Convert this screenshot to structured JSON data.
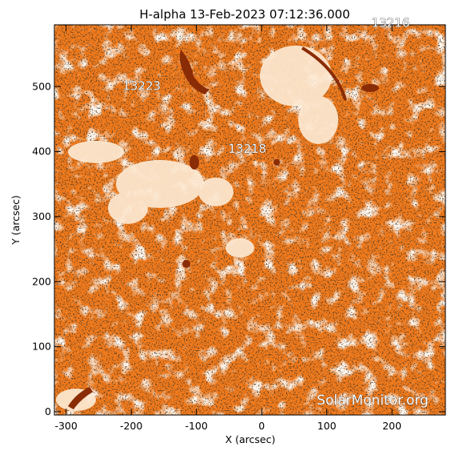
{
  "title": "H-alpha 13-Feb-2023 07:12:36.000",
  "axes": {
    "xlabel": "X (arcsec)",
    "ylabel": "Y (arcsec)",
    "xlim": [
      -318,
      282
    ],
    "ylim": [
      -5,
      595
    ],
    "xticks": [
      -300,
      -200,
      -100,
      0,
      100,
      200
    ],
    "yticks": [
      0,
      100,
      200,
      300,
      400,
      500
    ]
  },
  "regions": [
    {
      "id": "13216",
      "label": "13216",
      "x": 198,
      "y": 592
    },
    {
      "id": "13223",
      "label": "13223",
      "x": -184,
      "y": 495
    },
    {
      "id": "13218",
      "label": "13218",
      "x": -22,
      "y": 398
    }
  ],
  "watermark": "SolarMonitor.org",
  "colors": {
    "base": "#f07a1c",
    "dark": "#8a2c06",
    "light": "#fde9d2",
    "black": "#1a0d05"
  }
}
